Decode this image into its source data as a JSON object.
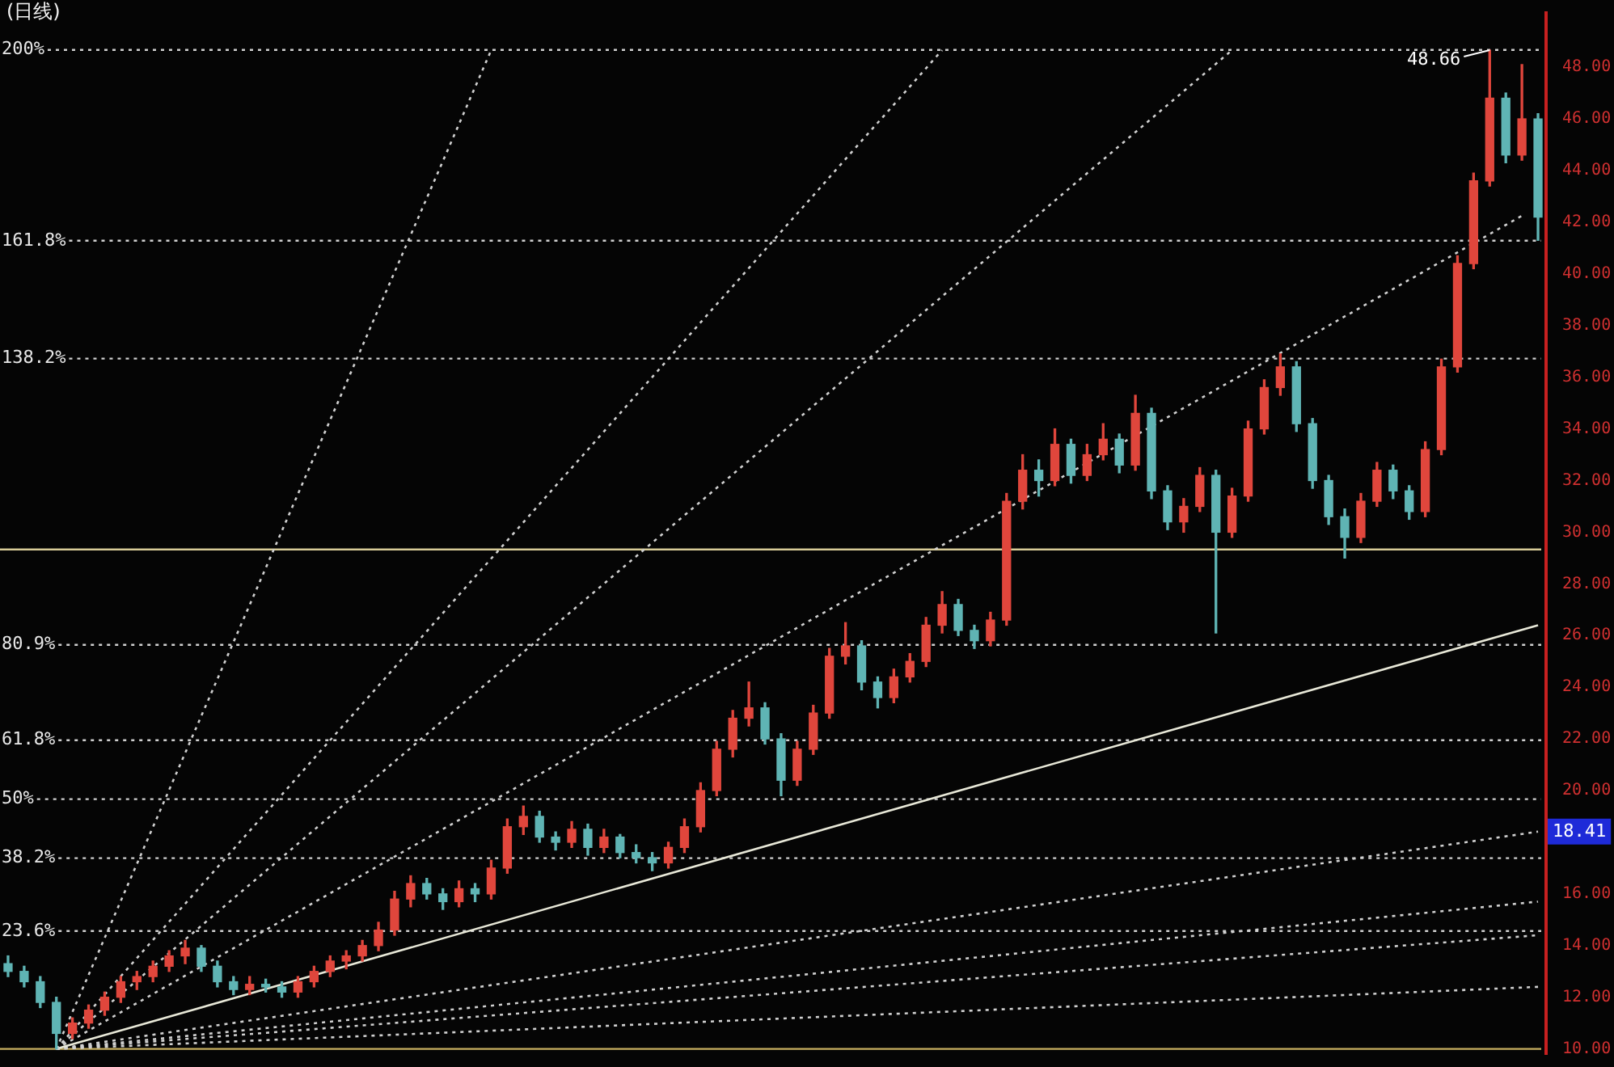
{
  "chart_data": {
    "type": "candlestick",
    "title": "(日线)",
    "categories": [
      null,
      null,
      null,
      null,
      null,
      null,
      null,
      null,
      null,
      null,
      null,
      null,
      null,
      null,
      null,
      null,
      null,
      null,
      null,
      null,
      null,
      null,
      null,
      null,
      null,
      null,
      null,
      null,
      null,
      null,
      null,
      null,
      null,
      null,
      null,
      null,
      null,
      null,
      null,
      null,
      null,
      null,
      null,
      null,
      null,
      null,
      null,
      null,
      null,
      null,
      null,
      null,
      null,
      null,
      null,
      null,
      null,
      null,
      null,
      null,
      null,
      null,
      null,
      null,
      null,
      null,
      null,
      null,
      null,
      null,
      null,
      null,
      null,
      null,
      null,
      null,
      null,
      null,
      null,
      null,
      null,
      null,
      null,
      null,
      null,
      null,
      null,
      null,
      null,
      null,
      null,
      null,
      null,
      null,
      null,
      null
    ],
    "ohlc": [
      [
        13.3,
        13.6,
        12.8,
        13.0
      ],
      [
        13.0,
        13.2,
        12.4,
        12.6
      ],
      [
        12.6,
        12.8,
        11.6,
        11.8
      ],
      [
        11.8,
        12.0,
        10.0,
        10.6
      ],
      [
        10.6,
        11.2,
        10.4,
        11.0
      ],
      [
        11.0,
        11.7,
        10.8,
        11.5
      ],
      [
        11.5,
        12.2,
        11.3,
        12.0
      ],
      [
        12.0,
        12.8,
        11.8,
        12.6
      ],
      [
        12.6,
        13.0,
        12.3,
        12.8
      ],
      [
        12.8,
        13.4,
        12.6,
        13.2
      ],
      [
        13.2,
        13.8,
        13.0,
        13.6
      ],
      [
        13.6,
        14.2,
        13.3,
        13.9
      ],
      [
        13.9,
        14.0,
        13.0,
        13.2
      ],
      [
        13.2,
        13.4,
        12.4,
        12.6
      ],
      [
        12.6,
        12.8,
        12.1,
        12.3
      ],
      [
        12.3,
        12.8,
        12.1,
        12.5
      ],
      [
        12.5,
        12.7,
        12.2,
        12.4
      ],
      [
        12.4,
        12.6,
        12.0,
        12.2
      ],
      [
        12.2,
        12.8,
        12.0,
        12.6
      ],
      [
        12.6,
        13.2,
        12.4,
        13.0
      ],
      [
        13.0,
        13.6,
        12.8,
        13.4
      ],
      [
        13.4,
        13.8,
        13.1,
        13.6
      ],
      [
        13.6,
        14.2,
        13.4,
        14.0
      ],
      [
        14.0,
        14.9,
        13.8,
        14.6
      ],
      [
        14.6,
        16.1,
        14.4,
        15.8
      ],
      [
        15.8,
        16.7,
        15.5,
        16.4
      ],
      [
        16.4,
        16.6,
        15.8,
        16.0
      ],
      [
        16.0,
        16.2,
        15.4,
        15.7
      ],
      [
        15.7,
        16.5,
        15.5,
        16.2
      ],
      [
        16.2,
        16.4,
        15.7,
        16.0
      ],
      [
        16.0,
        17.3,
        15.8,
        17.0
      ],
      [
        17.0,
        18.9,
        16.8,
        18.6
      ],
      [
        18.6,
        19.4,
        18.3,
        19.0
      ],
      [
        19.0,
        19.2,
        18.0,
        18.2
      ],
      [
        18.2,
        18.4,
        17.7,
        18.0
      ],
      [
        18.0,
        18.8,
        17.8,
        18.5
      ],
      [
        18.5,
        18.7,
        17.5,
        17.8
      ],
      [
        17.8,
        18.5,
        17.6,
        18.2
      ],
      [
        18.2,
        18.3,
        17.4,
        17.6
      ],
      [
        17.6,
        17.9,
        17.2,
        17.4
      ],
      [
        17.4,
        17.6,
        16.9,
        17.2
      ],
      [
        17.2,
        18.0,
        17.0,
        17.8
      ],
      [
        17.8,
        18.9,
        17.6,
        18.6
      ],
      [
        18.6,
        20.3,
        18.4,
        20.0
      ],
      [
        20.0,
        21.9,
        19.8,
        21.6
      ],
      [
        21.6,
        23.1,
        21.3,
        22.8
      ],
      [
        22.8,
        24.2,
        22.5,
        23.2
      ],
      [
        23.2,
        23.4,
        21.8,
        22.0
      ],
      [
        22.0,
        22.2,
        19.8,
        20.4
      ],
      [
        20.4,
        21.9,
        20.2,
        21.6
      ],
      [
        21.6,
        23.3,
        21.4,
        23.0
      ],
      [
        23.0,
        25.5,
        22.8,
        25.2
      ],
      [
        25.2,
        26.5,
        24.9,
        25.6
      ],
      [
        25.6,
        25.8,
        23.9,
        24.2
      ],
      [
        24.2,
        24.4,
        23.2,
        23.6
      ],
      [
        23.6,
        24.7,
        23.4,
        24.4
      ],
      [
        24.4,
        25.3,
        24.2,
        25.0
      ],
      [
        25.0,
        26.7,
        24.8,
        26.4
      ],
      [
        26.4,
        27.7,
        26.1,
        27.2
      ],
      [
        27.2,
        27.4,
        26.0,
        26.2
      ],
      [
        26.2,
        26.4,
        25.5,
        25.8
      ],
      [
        25.8,
        26.9,
        25.6,
        26.6
      ],
      [
        26.6,
        31.5,
        26.4,
        31.2
      ],
      [
        31.2,
        33.0,
        30.9,
        32.4
      ],
      [
        32.4,
        32.8,
        31.4,
        32.0
      ],
      [
        32.0,
        34.0,
        31.8,
        33.4
      ],
      [
        33.4,
        33.6,
        31.9,
        32.2
      ],
      [
        32.2,
        33.4,
        32.0,
        33.0
      ],
      [
        33.0,
        34.2,
        32.8,
        33.6
      ],
      [
        33.6,
        33.8,
        32.3,
        32.6
      ],
      [
        32.6,
        35.3,
        32.4,
        34.6
      ],
      [
        34.6,
        34.8,
        31.3,
        31.6
      ],
      [
        31.6,
        31.8,
        30.1,
        30.4
      ],
      [
        30.4,
        31.3,
        30.0,
        31.0
      ],
      [
        31.0,
        32.5,
        30.8,
        32.2
      ],
      [
        32.2,
        32.4,
        26.1,
        30.0
      ],
      [
        30.0,
        31.7,
        29.8,
        31.4
      ],
      [
        31.4,
        34.3,
        31.2,
        34.0
      ],
      [
        34.0,
        35.9,
        33.8,
        35.6
      ],
      [
        35.6,
        36.9,
        35.3,
        36.4
      ],
      [
        36.4,
        36.6,
        33.9,
        34.2
      ],
      [
        34.2,
        34.4,
        31.7,
        32.0
      ],
      [
        32.0,
        32.2,
        30.3,
        30.6
      ],
      [
        30.6,
        30.9,
        29.0,
        29.8
      ],
      [
        29.8,
        31.5,
        29.6,
        31.2
      ],
      [
        31.2,
        32.7,
        31.0,
        32.4
      ],
      [
        32.4,
        32.6,
        31.3,
        31.6
      ],
      [
        31.6,
        31.8,
        30.5,
        30.8
      ],
      [
        30.8,
        33.5,
        30.6,
        33.2
      ],
      [
        33.2,
        36.7,
        33.0,
        36.4
      ],
      [
        36.4,
        40.7,
        36.2,
        40.4
      ],
      [
        40.4,
        43.9,
        40.2,
        43.6
      ],
      [
        43.6,
        48.66,
        43.4,
        46.8
      ],
      [
        46.8,
        47.0,
        44.3,
        44.6
      ],
      [
        44.6,
        48.1,
        44.4,
        46.0
      ],
      [
        46.0,
        46.2,
        41.3,
        42.2
      ]
    ],
    "colors": [
      "#5fb4b4",
      "#5fb4b4",
      "#5fb4b4",
      "#5fb4b4",
      "#e0463c",
      "#e0463c",
      "#e0463c",
      "#e0463c",
      "#e0463c",
      "#e0463c",
      "#e0463c",
      "#e0463c",
      "#5fb4b4",
      "#5fb4b4",
      "#5fb4b4",
      "#e0463c",
      "#5fb4b4",
      "#5fb4b4",
      "#e0463c",
      "#e0463c",
      "#e0463c",
      "#e0463c",
      "#e0463c",
      "#e0463c",
      "#e0463c",
      "#e0463c",
      "#5fb4b4",
      "#5fb4b4",
      "#e0463c",
      "#5fb4b4",
      "#e0463c",
      "#e0463c",
      "#e0463c",
      "#5fb4b4",
      "#5fb4b4",
      "#e0463c",
      "#5fb4b4",
      "#e0463c",
      "#5fb4b4",
      "#5fb4b4",
      "#5fb4b4",
      "#e0463c",
      "#e0463c",
      "#e0463c",
      "#e0463c",
      "#e0463c",
      "#e0463c",
      "#5fb4b4",
      "#5fb4b4",
      "#e0463c",
      "#e0463c",
      "#e0463c",
      "#e0463c",
      "#5fb4b4",
      "#5fb4b4",
      "#e0463c",
      "#e0463c",
      "#e0463c",
      "#e0463c",
      "#5fb4b4",
      "#5fb4b4",
      "#e0463c",
      "#e0463c",
      "#e0463c",
      "#5fb4b4",
      "#e0463c",
      "#5fb4b4",
      "#e0463c",
      "#e0463c",
      "#5fb4b4",
      "#e0463c",
      "#5fb4b4",
      "#5fb4b4",
      "#e0463c",
      "#e0463c",
      "#5fb4b4",
      "#e0463c",
      "#e0463c",
      "#e0463c",
      "#e0463c",
      "#5fb4b4",
      "#5fb4b4",
      "#5fb4b4",
      "#5fb4b4",
      "#e0463c",
      "#e0463c",
      "#5fb4b4",
      "#5fb4b4",
      "#e0463c",
      "#e0463c",
      "#e0463c",
      "#e0463c",
      "#e0463c",
      "#5fb4b4",
      "#e0463c",
      "#5fb4b4"
    ],
    "series": [
      {
        "type": "line",
        "color": "#d0d0d0",
        "line_style": "dotted",
        "values": [
          null,
          null,
          null,
          10.0,
          null,
          null,
          null,
          null,
          null,
          null,
          null,
          null,
          null,
          null,
          null,
          null,
          null,
          null,
          null,
          null,
          null,
          null,
          null,
          null,
          null,
          null,
          null,
          null,
          null,
          null,
          48.66,
          null,
          null,
          null,
          null,
          null,
          null,
          null,
          null,
          null,
          null,
          null,
          null,
          null,
          null,
          null,
          null,
          null,
          null,
          null,
          null,
          null,
          null,
          null,
          null,
          null,
          null,
          null,
          null,
          null,
          null,
          null,
          null,
          null,
          null,
          null,
          null,
          null,
          null,
          null,
          null,
          null,
          null,
          null,
          null,
          null,
          null,
          null,
          null,
          null,
          null,
          null,
          null,
          null,
          null,
          null,
          null,
          null,
          null,
          null,
          null,
          null,
          null,
          null,
          null,
          null
        ]
      },
      {
        "type": "line",
        "color": "#d0d0d0",
        "line_style": "dotted",
        "values": [
          null,
          null,
          null,
          10.0,
          null,
          null,
          null,
          null,
          null,
          null,
          null,
          null,
          null,
          null,
          null,
          null,
          null,
          null,
          null,
          null,
          null,
          null,
          null,
          null,
          null,
          null,
          null,
          null,
          null,
          null,
          null,
          null,
          null,
          null,
          null,
          null,
          null,
          null,
          null,
          null,
          null,
          null,
          null,
          null,
          null,
          null,
          null,
          null,
          null,
          null,
          null,
          null,
          null,
          null,
          null,
          null,
          null,
          null,
          48.66,
          null,
          null,
          null,
          null,
          null,
          null,
          null,
          null,
          null,
          null,
          null,
          null,
          null,
          null,
          null,
          null,
          null,
          null,
          null,
          null,
          null,
          null,
          null,
          null,
          null,
          null,
          null,
          null,
          null,
          null,
          null,
          null,
          null,
          null,
          null,
          null,
          null
        ]
      },
      {
        "type": "line",
        "color": "#d0d0d0",
        "line_style": "dotted",
        "values": [
          null,
          null,
          null,
          10.0,
          null,
          null,
          null,
          null,
          null,
          null,
          null,
          null,
          null,
          null,
          null,
          null,
          null,
          null,
          null,
          null,
          null,
          null,
          null,
          null,
          null,
          null,
          null,
          null,
          null,
          null,
          null,
          null,
          null,
          null,
          null,
          null,
          null,
          null,
          null,
          null,
          null,
          null,
          null,
          null,
          null,
          null,
          null,
          null,
          null,
          null,
          null,
          null,
          null,
          null,
          null,
          null,
          null,
          null,
          null,
          null,
          null,
          null,
          null,
          null,
          null,
          null,
          null,
          null,
          null,
          null,
          null,
          null,
          null,
          null,
          null,
          null,
          48.66,
          null,
          null,
          null,
          null,
          null,
          null,
          null,
          null,
          null,
          null,
          null,
          null,
          null,
          null,
          null,
          null,
          null,
          null,
          null
        ]
      },
      {
        "type": "line",
        "color": "#d0d0d0",
        "line_style": "dotted",
        "values": [
          null,
          null,
          null,
          10.0,
          null,
          null,
          null,
          null,
          null,
          null,
          null,
          null,
          null,
          null,
          null,
          null,
          null,
          null,
          null,
          null,
          null,
          null,
          null,
          null,
          null,
          null,
          null,
          null,
          null,
          null,
          null,
          null,
          null,
          null,
          null,
          null,
          null,
          null,
          null,
          null,
          null,
          null,
          null,
          null,
          null,
          null,
          null,
          null,
          null,
          null,
          null,
          null,
          null,
          null,
          null,
          null,
          null,
          null,
          null,
          null,
          null,
          null,
          null,
          null,
          null,
          null,
          null,
          null,
          null,
          null,
          null,
          null,
          null,
          null,
          null,
          null,
          null,
          null,
          null,
          null,
          null,
          null,
          null,
          null,
          null,
          null,
          null,
          null,
          null,
          null,
          null,
          null,
          null,
          null,
          42.25,
          null
        ]
      },
      {
        "type": "line",
        "color": "#e8e8d8",
        "line_style": "solid",
        "values": [
          null,
          null,
          null,
          10.0,
          null,
          null,
          null,
          null,
          null,
          null,
          null,
          null,
          null,
          null,
          null,
          null,
          null,
          null,
          null,
          null,
          null,
          null,
          null,
          null,
          null,
          null,
          null,
          null,
          null,
          null,
          null,
          null,
          null,
          null,
          null,
          null,
          null,
          null,
          null,
          null,
          null,
          null,
          null,
          null,
          null,
          null,
          null,
          null,
          null,
          null,
          null,
          null,
          null,
          null,
          null,
          null,
          null,
          null,
          null,
          null,
          null,
          null,
          null,
          null,
          null,
          null,
          null,
          null,
          null,
          null,
          null,
          null,
          null,
          null,
          null,
          null,
          null,
          null,
          null,
          null,
          null,
          null,
          null,
          null,
          null,
          null,
          null,
          null,
          null,
          null,
          null,
          null,
          null,
          null,
          null,
          26.4
        ]
      },
      {
        "type": "line",
        "color": "#d0d0d0",
        "line_style": "dotted",
        "values": [
          null,
          null,
          null,
          10.0,
          null,
          null,
          null,
          null,
          null,
          null,
          null,
          null,
          null,
          null,
          null,
          null,
          null,
          null,
          null,
          null,
          null,
          null,
          null,
          null,
          null,
          null,
          null,
          null,
          null,
          null,
          null,
          null,
          null,
          null,
          null,
          null,
          null,
          null,
          null,
          null,
          null,
          null,
          null,
          null,
          null,
          null,
          null,
          null,
          null,
          null,
          null,
          null,
          null,
          null,
          null,
          null,
          null,
          null,
          null,
          null,
          null,
          null,
          null,
          null,
          null,
          null,
          null,
          null,
          null,
          null,
          null,
          null,
          null,
          null,
          null,
          null,
          null,
          null,
          null,
          null,
          null,
          null,
          null,
          null,
          null,
          null,
          null,
          null,
          null,
          null,
          null,
          null,
          null,
          null,
          null,
          18.41
        ],
        "value_labels": [
          null,
          null,
          null,
          null,
          null,
          null,
          null,
          null,
          null,
          null,
          null,
          null,
          null,
          null,
          null,
          null,
          null,
          null,
          null,
          null,
          null,
          null,
          null,
          null,
          null,
          null,
          null,
          null,
          null,
          null,
          null,
          null,
          null,
          null,
          null,
          null,
          null,
          null,
          null,
          null,
          null,
          null,
          null,
          null,
          null,
          null,
          null,
          null,
          null,
          null,
          null,
          null,
          null,
          null,
          null,
          null,
          null,
          null,
          null,
          null,
          null,
          null,
          null,
          null,
          null,
          null,
          null,
          null,
          null,
          null,
          null,
          null,
          null,
          null,
          null,
          null,
          null,
          null,
          null,
          null,
          null,
          null,
          null,
          null,
          null,
          null,
          null,
          null,
          null,
          null,
          null,
          null,
          null,
          null,
          null,
          "18.41"
        ]
      },
      {
        "type": "line",
        "color": "#d0d0d0",
        "line_style": "dotted",
        "values": [
          null,
          null,
          null,
          10.0,
          null,
          null,
          null,
          null,
          null,
          null,
          null,
          null,
          null,
          null,
          null,
          null,
          null,
          null,
          null,
          null,
          null,
          null,
          null,
          null,
          null,
          null,
          null,
          null,
          null,
          null,
          null,
          null,
          null,
          null,
          null,
          null,
          null,
          null,
          null,
          null,
          null,
          null,
          null,
          null,
          null,
          null,
          null,
          null,
          null,
          null,
          null,
          null,
          null,
          null,
          null,
          null,
          null,
          null,
          null,
          null,
          null,
          null,
          null,
          null,
          null,
          null,
          null,
          null,
          null,
          null,
          null,
          null,
          null,
          null,
          null,
          null,
          null,
          null,
          null,
          null,
          null,
          null,
          null,
          null,
          null,
          null,
          null,
          null,
          null,
          null,
          null,
          null,
          null,
          null,
          null,
          15.7
        ]
      },
      {
        "type": "line",
        "color": "#d0d0d0",
        "line_style": "dotted",
        "values": [
          null,
          null,
          null,
          10.0,
          null,
          null,
          null,
          null,
          null,
          null,
          null,
          null,
          null,
          null,
          null,
          null,
          null,
          null,
          null,
          null,
          null,
          null,
          null,
          null,
          null,
          null,
          null,
          null,
          null,
          null,
          null,
          null,
          null,
          null,
          null,
          null,
          null,
          null,
          null,
          null,
          null,
          null,
          null,
          null,
          null,
          null,
          null,
          null,
          null,
          null,
          null,
          null,
          null,
          null,
          null,
          null,
          null,
          null,
          null,
          null,
          null,
          null,
          null,
          null,
          null,
          null,
          null,
          null,
          null,
          null,
          null,
          null,
          null,
          null,
          null,
          null,
          null,
          null,
          null,
          null,
          null,
          null,
          null,
          null,
          null,
          null,
          null,
          null,
          null,
          null,
          null,
          null,
          null,
          null,
          null,
          14.4
        ]
      },
      {
        "type": "line",
        "color": "#d0d0d0",
        "line_style": "dotted",
        "values": [
          null,
          null,
          null,
          10.0,
          null,
          null,
          null,
          null,
          null,
          null,
          null,
          null,
          null,
          null,
          null,
          null,
          null,
          null,
          null,
          null,
          null,
          null,
          null,
          null,
          null,
          null,
          null,
          null,
          null,
          null,
          null,
          null,
          null,
          null,
          null,
          null,
          null,
          null,
          null,
          null,
          null,
          null,
          null,
          null,
          null,
          null,
          null,
          null,
          null,
          null,
          null,
          null,
          null,
          null,
          null,
          null,
          null,
          null,
          null,
          null,
          null,
          null,
          null,
          null,
          null,
          null,
          null,
          null,
          null,
          null,
          null,
          null,
          null,
          null,
          null,
          null,
          null,
          null,
          null,
          null,
          null,
          null,
          null,
          null,
          null,
          null,
          null,
          null,
          null,
          null,
          null,
          null,
          null,
          null,
          null,
          12.4
        ]
      }
    ],
    "marker": "none",
    "ylim": [
      9.8,
      50.1
    ],
    "yticks": [
      {
        "value": 10,
        "label": "10.00"
      },
      {
        "value": 12,
        "label": "12.00"
      },
      {
        "value": 14,
        "label": "14.00"
      },
      {
        "value": 16,
        "label": "16.00"
      },
      {
        "value": 20,
        "label": "20.00"
      },
      {
        "value": 22,
        "label": "22.00"
      },
      {
        "value": 24,
        "label": "24.00"
      },
      {
        "value": 26,
        "label": "26.00"
      },
      {
        "value": 28,
        "label": "28.00"
      },
      {
        "value": 30,
        "label": "30.00"
      },
      {
        "value": 32,
        "label": "32.00"
      },
      {
        "value": 34,
        "label": "34.00"
      },
      {
        "value": 36,
        "label": "36.00"
      },
      {
        "value": 38,
        "label": "38.00"
      },
      {
        "value": 40,
        "label": "40.00"
      },
      {
        "value": 42,
        "label": "42.00"
      },
      {
        "value": 44,
        "label": "44.00"
      },
      {
        "value": 46,
        "label": "46.00"
      },
      {
        "value": 48,
        "label": "48.00"
      }
    ],
    "tick_labels": "y",
    "y2lim": [
      -1.03,
      207.4
    ],
    "ref_lines": [
      {
        "axis": "y2",
        "value": 200,
        "label": "200%",
        "color": "#d0d0d0",
        "line_style": "dotted"
      },
      {
        "axis": "y2",
        "value": 161.8,
        "label": "161.8%",
        "color": "#d0d0d0",
        "line_style": "dotted"
      },
      {
        "axis": "y2",
        "value": 138.2,
        "label": "138.2%",
        "color": "#d0d0d0",
        "line_style": "dotted"
      },
      {
        "axis": "y2",
        "value": 100,
        "color": "#d8cc98",
        "line_style": "solid"
      },
      {
        "axis": "y2",
        "value": 80.9,
        "label": "80.9%",
        "color": "#d0d0d0",
        "line_style": "dotted"
      },
      {
        "axis": "y2",
        "value": 61.8,
        "label": "61.8%",
        "color": "#d0d0d0",
        "line_style": "dotted"
      },
      {
        "axis": "y2",
        "value": 50,
        "label": "50%",
        "color": "#d0d0d0",
        "line_style": "dotted"
      },
      {
        "axis": "y2",
        "value": 38.2,
        "label": "38.2%",
        "color": "#d0d0d0",
        "line_style": "dotted"
      },
      {
        "axis": "y2",
        "value": 23.6,
        "label": "23.6%",
        "color": "#d0d0d0",
        "line_style": "dotted"
      },
      {
        "axis": "y2",
        "value": 0,
        "color": "#c8b060",
        "line_style": "solid"
      }
    ],
    "annotations": [
      {
        "text": "48.66",
        "y": 48.66
      }
    ]
  }
}
